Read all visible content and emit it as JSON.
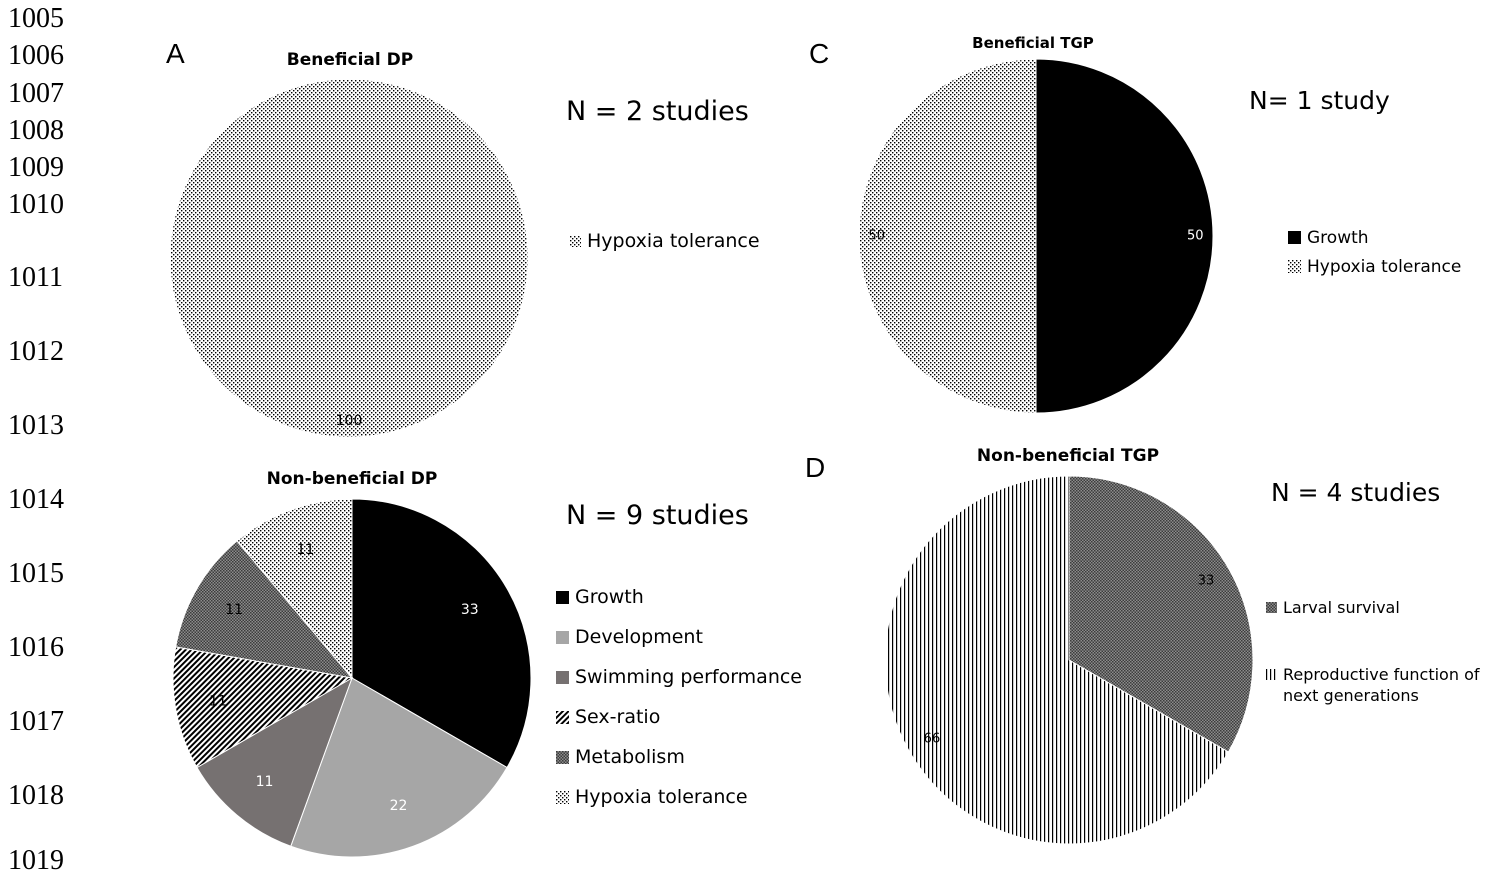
{
  "line_numbers": [
    "1005",
    "1006",
    "1007",
    "1008",
    "1009",
    "1010",
    "1011",
    "1012",
    "1013",
    "1014",
    "1015",
    "1016",
    "1017",
    "1018",
    "1019"
  ],
  "colors": {
    "growth": "#000000",
    "development": "#a6a6a6",
    "swimming_performance": "#767171",
    "sex_ratio_pattern": "diagonal-stripes",
    "metabolism_pattern": "dense-checker",
    "hypoxia_tolerance_pattern": "fine-dots",
    "larval_survival_pattern": "dense-checker",
    "reproductive_pattern": "vertical-lines"
  },
  "chart_data": [
    {
      "panel": "A",
      "type": "pie",
      "title": "Beneficial DP",
      "n_label": "N = 2 studies",
      "slices": [
        {
          "label": "Hypoxia tolerance",
          "value": 100,
          "pattern": "dots"
        }
      ],
      "legend_placement": "right"
    },
    {
      "panel": "",
      "type": "pie",
      "title": "Non-beneficial DP",
      "n_label": "N = 9 studies",
      "slices": [
        {
          "label": "Growth",
          "value": 33,
          "pattern": "black"
        },
        {
          "label": "Development",
          "value": 22,
          "pattern": "lightgray"
        },
        {
          "label": "Swimming performance",
          "value": 11,
          "pattern": "darkgray"
        },
        {
          "label": "Sex-ratio",
          "value": 11,
          "pattern": "diag"
        },
        {
          "label": "Metabolism",
          "value": 11,
          "pattern": "checker"
        },
        {
          "label": "Hypoxia tolerance",
          "value": 11,
          "pattern": "dots"
        }
      ],
      "legend_placement": "right"
    },
    {
      "panel": "C",
      "type": "pie",
      "title": "Beneficial TGP",
      "n_label": "N= 1 study",
      "slices": [
        {
          "label": "Growth",
          "value": 50,
          "pattern": "black"
        },
        {
          "label": "Hypoxia tolerance",
          "value": 50,
          "pattern": "dots"
        }
      ],
      "legend_placement": "right"
    },
    {
      "panel": "D",
      "type": "pie",
      "title": "Non-beneficial TGP",
      "n_label": "N = 4 studies",
      "slices": [
        {
          "label": "Larval survival",
          "value": 33,
          "pattern": "checker"
        },
        {
          "label": "Reproductive function of next generations",
          "value": 66,
          "pattern": "vlines"
        }
      ],
      "legend_placement": "right"
    }
  ]
}
